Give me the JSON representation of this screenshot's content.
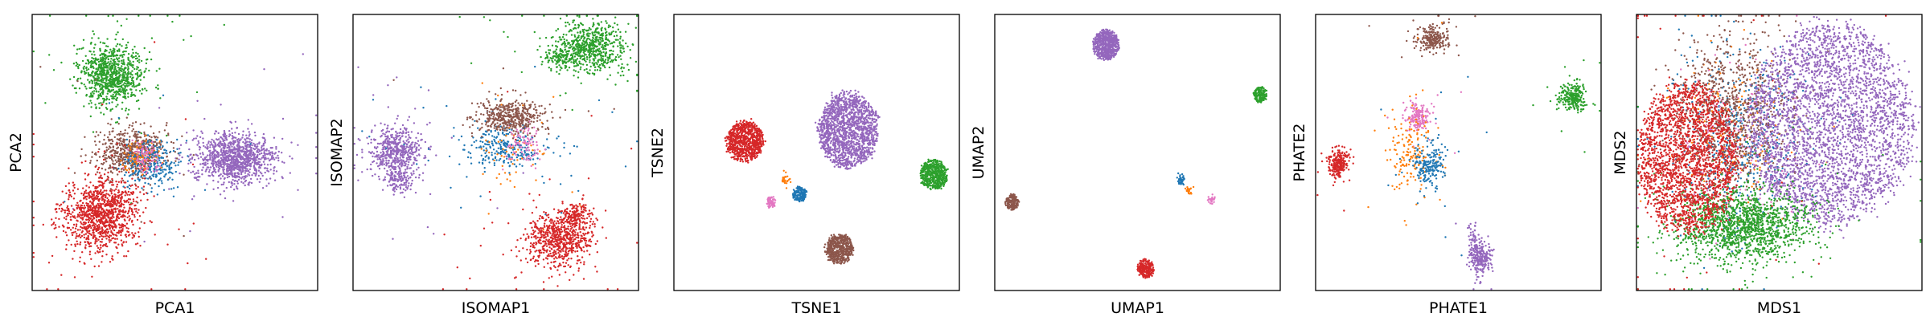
{
  "chart_data": [
    {
      "type": "scatter",
      "xlabel": "PCA1",
      "ylabel": "PCA2",
      "ticks": "none",
      "grid": false,
      "legend": "none",
      "series": [
        {
          "color": "#2ca02c",
          "clusters": [
            {
              "cx": 0.28,
              "cy": 0.78,
              "sx": 0.055,
              "sy": 0.055,
              "n": 900,
              "tail": 0.04
            }
          ]
        },
        {
          "color": "#9467bd",
          "clusters": [
            {
              "cx": 0.71,
              "cy": 0.48,
              "sx": 0.07,
              "sy": 0.045,
              "n": 1100,
              "tail": 0.03
            }
          ]
        },
        {
          "color": "#8c564b",
          "clusters": [
            {
              "cx": 0.35,
              "cy": 0.5,
              "sx": 0.06,
              "sy": 0.045,
              "n": 600,
              "tail": 0.02
            }
          ]
        },
        {
          "color": "#1f77b4",
          "clusters": [
            {
              "cx": 0.42,
              "cy": 0.46,
              "sx": 0.05,
              "sy": 0.045,
              "n": 280,
              "tail": 0.05
            }
          ]
        },
        {
          "color": "#ff7f0e",
          "clusters": [
            {
              "cx": 0.38,
              "cy": 0.49,
              "sx": 0.03,
              "sy": 0.03,
              "n": 80,
              "tail": 0.0
            }
          ]
        },
        {
          "color": "#e377c2",
          "clusters": [
            {
              "cx": 0.4,
              "cy": 0.48,
              "sx": 0.03,
              "sy": 0.03,
              "n": 80,
              "tail": 0.0
            }
          ]
        },
        {
          "color": "#d62728",
          "clusters": [
            {
              "cx": 0.24,
              "cy": 0.28,
              "sx": 0.065,
              "sy": 0.065,
              "n": 1100,
              "tail": 0.04
            }
          ]
        }
      ]
    },
    {
      "type": "scatter",
      "xlabel": "ISOMAP1",
      "ylabel": "ISOMAP2",
      "ticks": "none",
      "grid": false,
      "legend": "none",
      "series": [
        {
          "color": "#9467bd",
          "clusters": [
            {
              "cx": 0.15,
              "cy": 0.5,
              "sx": 0.045,
              "sy": 0.045,
              "n": 550,
              "tail": 0.05
            },
            {
              "cx": 0.16,
              "cy": 0.4,
              "sx": 0.02,
              "sy": 0.03,
              "n": 120,
              "tail": 0.0
            }
          ]
        },
        {
          "color": "#1f77b4",
          "clusters": [
            {
              "cx": 0.53,
              "cy": 0.52,
              "sx": 0.07,
              "sy": 0.04,
              "n": 300,
              "tail": 0.15
            }
          ]
        },
        {
          "color": "#ff7f0e",
          "clusters": [
            {
              "cx": 0.55,
              "cy": 0.5,
              "sx": 0.05,
              "sy": 0.05,
              "n": 60,
              "tail": 0.2
            }
          ]
        },
        {
          "color": "#e377c2",
          "clusters": [
            {
              "cx": 0.6,
              "cy": 0.53,
              "sx": 0.03,
              "sy": 0.04,
              "n": 90,
              "tail": 0.0
            }
          ]
        },
        {
          "color": "#8c564b",
          "clusters": [
            {
              "cx": 0.55,
              "cy": 0.63,
              "sx": 0.06,
              "sy": 0.03,
              "n": 450,
              "tail": 0.03
            }
          ]
        },
        {
          "color": "#2ca02c",
          "clusters": [
            {
              "cx": 0.83,
              "cy": 0.88,
              "sx": 0.06,
              "sy": 0.045,
              "n": 650,
              "tail": 0.04
            },
            {
              "cx": 0.73,
              "cy": 0.84,
              "sx": 0.03,
              "sy": 0.02,
              "n": 120,
              "tail": 0.0
            }
          ]
        },
        {
          "color": "#d62728",
          "clusters": [
            {
              "cx": 0.72,
              "cy": 0.18,
              "sx": 0.06,
              "sy": 0.05,
              "n": 700,
              "tail": 0.05
            },
            {
              "cx": 0.78,
              "cy": 0.27,
              "sx": 0.03,
              "sy": 0.02,
              "n": 150,
              "tail": 0.0
            }
          ]
        }
      ]
    },
    {
      "type": "scatter",
      "xlabel": "TSNE1",
      "ylabel": "TSNE2",
      "ticks": "none",
      "grid": false,
      "legend": "none",
      "series": [
        {
          "color": "#9467bd",
          "clusters": [
            {
              "cx": 0.61,
              "cy": 0.58,
              "sx": 0.055,
              "sy": 0.07,
              "n": 1500,
              "tail": 0.0,
              "disk": true
            }
          ]
        },
        {
          "color": "#d62728",
          "clusters": [
            {
              "cx": 0.25,
              "cy": 0.54,
              "sx": 0.034,
              "sy": 0.038,
              "n": 800,
              "tail": 0.0,
              "disk": true
            }
          ]
        },
        {
          "color": "#2ca02c",
          "clusters": [
            {
              "cx": 0.91,
              "cy": 0.42,
              "sx": 0.025,
              "sy": 0.028,
              "n": 500,
              "tail": 0.0,
              "disk": true
            }
          ]
        },
        {
          "color": "#8c564b",
          "clusters": [
            {
              "cx": 0.58,
              "cy": 0.15,
              "sx": 0.025,
              "sy": 0.028,
              "n": 500,
              "tail": 0.0,
              "disk": true
            }
          ]
        },
        {
          "color": "#1f77b4",
          "clusters": [
            {
              "cx": 0.44,
              "cy": 0.35,
              "sx": 0.012,
              "sy": 0.015,
              "n": 150,
              "tail": 0.0,
              "disk": true
            }
          ]
        },
        {
          "color": "#e377c2",
          "clusters": [
            {
              "cx": 0.34,
              "cy": 0.32,
              "sx": 0.008,
              "sy": 0.012,
              "n": 60,
              "tail": 0.0,
              "disk": true
            }
          ]
        },
        {
          "color": "#ff7f0e",
          "clusters": [
            {
              "cx": 0.39,
              "cy": 0.4,
              "sx": 0.008,
              "sy": 0.01,
              "n": 30,
              "tail": 0.0
            }
          ]
        }
      ]
    },
    {
      "type": "scatter",
      "xlabel": "UMAP1",
      "ylabel": "UMAP2",
      "ticks": "none",
      "grid": false,
      "legend": "none",
      "series": [
        {
          "color": "#9467bd",
          "clusters": [
            {
              "cx": 0.39,
              "cy": 0.89,
              "sx": 0.024,
              "sy": 0.028,
              "n": 600,
              "tail": 0.0,
              "disk": true
            }
          ]
        },
        {
          "color": "#2ca02c",
          "clusters": [
            {
              "cx": 0.93,
              "cy": 0.71,
              "sx": 0.012,
              "sy": 0.015,
              "n": 150,
              "tail": 0.0,
              "disk": true
            }
          ]
        },
        {
          "color": "#8c564b",
          "clusters": [
            {
              "cx": 0.06,
              "cy": 0.32,
              "sx": 0.012,
              "sy": 0.015,
              "n": 150,
              "tail": 0.0,
              "disk": true
            }
          ]
        },
        {
          "color": "#d62728",
          "clusters": [
            {
              "cx": 0.53,
              "cy": 0.08,
              "sx": 0.015,
              "sy": 0.018,
              "n": 220,
              "tail": 0.0,
              "disk": true
            }
          ]
        },
        {
          "color": "#1f77b4",
          "clusters": [
            {
              "cx": 0.65,
              "cy": 0.4,
              "sx": 0.006,
              "sy": 0.01,
              "n": 40,
              "tail": 0.0
            }
          ]
        },
        {
          "color": "#ff7f0e",
          "clusters": [
            {
              "cx": 0.68,
              "cy": 0.36,
              "sx": 0.005,
              "sy": 0.008,
              "n": 20,
              "tail": 0.0
            }
          ]
        },
        {
          "color": "#e377c2",
          "clusters": [
            {
              "cx": 0.76,
              "cy": 0.33,
              "sx": 0.006,
              "sy": 0.008,
              "n": 25,
              "tail": 0.0
            }
          ]
        }
      ]
    },
    {
      "type": "scatter",
      "xlabel": "PHATE1",
      "ylabel": "PHATE2",
      "ticks": "none",
      "grid": false,
      "legend": "none",
      "series": [
        {
          "color": "#8c564b",
          "clusters": [
            {
              "cx": 0.41,
              "cy": 0.91,
              "sx": 0.025,
              "sy": 0.02,
              "n": 250,
              "tail": 0.06
            }
          ]
        },
        {
          "color": "#2ca02c",
          "clusters": [
            {
              "cx": 0.9,
              "cy": 0.7,
              "sx": 0.022,
              "sy": 0.025,
              "n": 250,
              "tail": 0.03
            }
          ]
        },
        {
          "color": "#d62728",
          "clusters": [
            {
              "cx": 0.08,
              "cy": 0.46,
              "sx": 0.018,
              "sy": 0.025,
              "n": 250,
              "tail": 0.03
            }
          ]
        },
        {
          "color": "#e377c2",
          "clusters": [
            {
              "cx": 0.36,
              "cy": 0.63,
              "sx": 0.02,
              "sy": 0.025,
              "n": 180,
              "tail": 0.06
            }
          ]
        },
        {
          "color": "#ff7f0e",
          "clusters": [
            {
              "cx": 0.33,
              "cy": 0.5,
              "sx": 0.035,
              "sy": 0.07,
              "n": 170,
              "tail": 0.1
            }
          ]
        },
        {
          "color": "#1f77b4",
          "clusters": [
            {
              "cx": 0.4,
              "cy": 0.45,
              "sx": 0.025,
              "sy": 0.04,
              "n": 200,
              "tail": 0.12
            }
          ]
        },
        {
          "color": "#9467bd",
          "clusters": [
            {
              "cx": 0.58,
              "cy": 0.12,
              "sx": 0.02,
              "sy": 0.03,
              "n": 220,
              "tail": 0.05
            },
            {
              "cx": 0.55,
              "cy": 0.18,
              "sx": 0.01,
              "sy": 0.04,
              "n": 60,
              "tail": 0.0
            }
          ]
        }
      ]
    },
    {
      "type": "scatter",
      "xlabel": "MDS1",
      "ylabel": "MDS2",
      "ticks": "none",
      "grid": false,
      "legend": "none",
      "series": [
        {
          "color": "#1f77b4",
          "clusters": [
            {
              "cx": 0.35,
              "cy": 0.55,
              "sx": 0.12,
              "sy": 0.16,
              "n": 500,
              "tail": 0.0
            }
          ]
        },
        {
          "color": "#ff7f0e",
          "clusters": [
            {
              "cx": 0.33,
              "cy": 0.55,
              "sx": 0.1,
              "sy": 0.16,
              "n": 180,
              "tail": 0.0
            }
          ]
        },
        {
          "color": "#e377c2",
          "clusters": [
            {
              "cx": 0.33,
              "cy": 0.55,
              "sx": 0.1,
              "sy": 0.16,
              "n": 180,
              "tail": 0.0
            }
          ]
        },
        {
          "color": "#8c564b",
          "clusters": [
            {
              "cx": 0.33,
              "cy": 0.65,
              "sx": 0.1,
              "sy": 0.14,
              "n": 900,
              "tail": 0.0
            }
          ]
        },
        {
          "color": "#9467bd",
          "clusters": [
            {
              "cx": 0.68,
              "cy": 0.6,
              "sx": 0.15,
              "sy": 0.19,
              "n": 3200,
              "tail": 0.0,
              "disk": true
            }
          ]
        },
        {
          "color": "#2ca02c",
          "clusters": [
            {
              "cx": 0.37,
              "cy": 0.24,
              "sx": 0.12,
              "sy": 0.07,
              "n": 1500,
              "tail": 0.03
            }
          ]
        },
        {
          "color": "#d62728",
          "clusters": [
            {
              "cx": 0.18,
              "cy": 0.48,
              "sx": 0.09,
              "sy": 0.14,
              "n": 2200,
              "tail": 0.02,
              "disk": true
            }
          ]
        }
      ]
    }
  ]
}
